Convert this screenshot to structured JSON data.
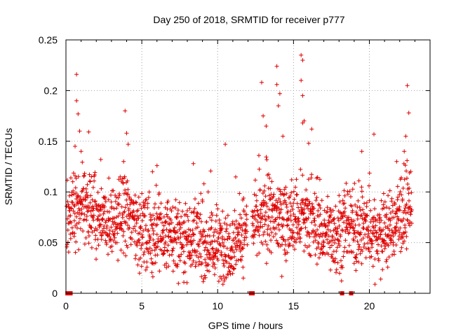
{
  "chart_data": {
    "type": "scatter",
    "title": "Day 250 of 2018, SRMTID for receiver p777",
    "xlabel": "GPS time / hours",
    "ylabel": "SRMTID / TECUs",
    "xlim": [
      0,
      24
    ],
    "ylim": [
      0,
      0.25
    ],
    "x_ticks": [
      0,
      5,
      10,
      15,
      20
    ],
    "x_tick_labels": [
      "0",
      "5",
      "10",
      "15",
      "20"
    ],
    "y_ticks": [
      0,
      0.05,
      0.1,
      0.15,
      0.2,
      0.25
    ],
    "y_tick_labels": [
      "0",
      "0.05",
      "0.1",
      "0.15",
      "0.2",
      "0.25"
    ],
    "grid": true,
    "legend": "none",
    "series": [
      {
        "name": "SRMTID",
        "color": "#e00000",
        "marker": "plus",
        "x_start": 0.05,
        "x_step": 0.0125,
        "x_end": 22.8,
        "baseline": [
          [
            0.0,
            0.075
          ],
          [
            0.5,
            0.085
          ],
          [
            1.0,
            0.09
          ],
          [
            2.0,
            0.07
          ],
          [
            3.0,
            0.068
          ],
          [
            4.0,
            0.08
          ],
          [
            5.0,
            0.06
          ],
          [
            6.0,
            0.058
          ],
          [
            7.0,
            0.055
          ],
          [
            8.0,
            0.057
          ],
          [
            9.0,
            0.05
          ],
          [
            10.0,
            0.045
          ],
          [
            11.0,
            0.052
          ],
          [
            12.0,
            0.06
          ],
          [
            13.0,
            0.075
          ],
          [
            14.0,
            0.075
          ],
          [
            15.0,
            0.07
          ],
          [
            16.0,
            0.072
          ],
          [
            17.0,
            0.06
          ],
          [
            18.0,
            0.06
          ],
          [
            19.0,
            0.065
          ],
          [
            20.0,
            0.06
          ],
          [
            21.0,
            0.058
          ],
          [
            22.0,
            0.075
          ],
          [
            22.8,
            0.085
          ]
        ],
        "spread": 0.018,
        "peaks": [
          [
            0.7,
            0.216
          ],
          [
            0.7,
            0.19
          ],
          [
            0.8,
            0.177
          ],
          [
            0.9,
            0.16
          ],
          [
            0.6,
            0.145
          ],
          [
            1.0,
            0.14
          ],
          [
            3.9,
            0.18
          ],
          [
            4.0,
            0.158
          ],
          [
            4.1,
            0.147
          ],
          [
            3.8,
            0.13
          ],
          [
            10.5,
            0.147
          ],
          [
            12.9,
            0.208
          ],
          [
            13.0,
            0.175
          ],
          [
            13.2,
            0.165
          ],
          [
            13.9,
            0.224
          ],
          [
            13.9,
            0.206
          ],
          [
            14.1,
            0.197
          ],
          [
            14.0,
            0.185
          ],
          [
            14.3,
            0.155
          ],
          [
            15.5,
            0.235
          ],
          [
            15.6,
            0.23
          ],
          [
            15.5,
            0.21
          ],
          [
            15.6,
            0.195
          ],
          [
            15.7,
            0.17
          ],
          [
            15.6,
            0.168
          ],
          [
            16.2,
            0.162
          ],
          [
            16.0,
            0.148
          ],
          [
            20.3,
            0.157
          ],
          [
            22.5,
            0.205
          ],
          [
            22.6,
            0.178
          ],
          [
            22.4,
            0.155
          ],
          [
            22.3,
            0.14
          ],
          [
            8.4,
            0.128
          ],
          [
            5.7,
            0.12
          ],
          [
            6.0,
            0.126
          ],
          [
            2.3,
            0.132
          ],
          [
            19.5,
            0.14
          ],
          [
            21.8,
            0.13
          ]
        ],
        "zero_points": [
          0.1,
          0.2,
          0.3,
          12.2,
          12.3,
          18.2,
          18.8
        ]
      }
    ]
  }
}
